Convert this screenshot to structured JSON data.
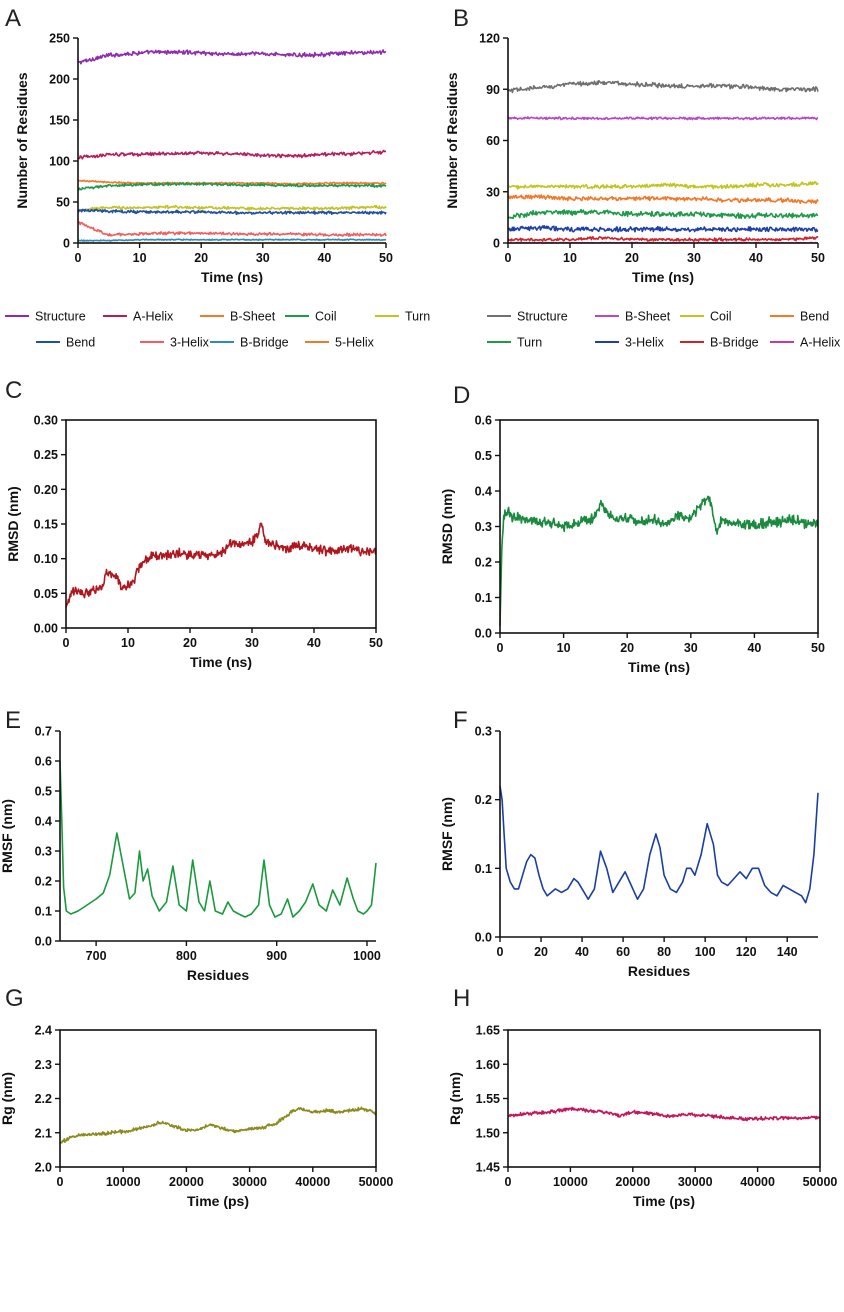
{
  "panel_letters": [
    "A",
    "B",
    "C",
    "D",
    "E",
    "F",
    "G",
    "H"
  ],
  "chart_data": [
    {
      "panel": "A",
      "type": "line",
      "xlabel": "Time (ns)",
      "ylabel": "Number of Residues",
      "xlim": [
        0,
        50
      ],
      "ylim": [
        0,
        250
      ],
      "xticks": [
        0,
        10,
        20,
        30,
        40,
        50
      ],
      "yticks": [
        0,
        50,
        100,
        150,
        200,
        250
      ],
      "yticklabels": [
        "0",
        "50",
        "100",
        "150",
        "200",
        "250"
      ],
      "legend_position": "bottom",
      "series": [
        {
          "name": "Structure",
          "color": "#8e2bb0",
          "base": [
            220,
            229,
            232,
            233,
            232,
            230,
            231,
            229,
            230,
            232,
            233
          ],
          "noise": 3
        },
        {
          "name": "A-Helix",
          "color": "#b51e5c",
          "base": [
            104,
            108,
            108,
            109,
            110,
            109,
            107,
            106,
            108,
            109,
            111
          ],
          "noise": 2.5
        },
        {
          "name": "B-Sheet",
          "color": "#f07a2a",
          "base": [
            76,
            74,
            73,
            73,
            73,
            73,
            73,
            72,
            73,
            73,
            73
          ],
          "noise": 1.2
        },
        {
          "name": "Coil",
          "color": "#1f9a4a",
          "base": [
            66,
            70,
            71,
            72,
            72,
            71,
            71,
            70,
            70,
            70,
            70
          ],
          "noise": 2
        },
        {
          "name": "Turn",
          "color": "#c4c421",
          "base": [
            40,
            43,
            43,
            44,
            43,
            43,
            42,
            42,
            42,
            43,
            44
          ],
          "noise": 2.2
        },
        {
          "name": "Bend",
          "color": "#1f4fa8",
          "base": [
            40,
            39,
            38,
            38,
            38,
            37,
            37,
            37,
            37,
            37,
            37
          ],
          "noise": 2
        },
        {
          "name": "3-Helix",
          "color": "#f25e5e",
          "base": [
            25,
            10,
            11,
            12,
            12,
            11,
            11,
            11,
            10,
            10,
            10
          ],
          "noise": 2
        },
        {
          "name": "B-Bridge",
          "color": "#2a8bbf",
          "base": [
            3,
            3,
            4,
            4,
            4,
            4,
            4,
            4,
            4,
            4,
            4
          ],
          "noise": 0.8
        },
        {
          "name": "5-Helix",
          "color": "#f07a2a",
          "base": [
            0,
            0,
            0,
            0,
            0,
            0,
            0,
            0,
            0,
            0,
            0
          ],
          "noise": 0
        }
      ]
    },
    {
      "panel": "B",
      "type": "line",
      "xlabel": "Time (ns)",
      "ylabel": "Number of Residues",
      "xlim": [
        0,
        50
      ],
      "ylim": [
        0,
        120
      ],
      "xticks": [
        0,
        10,
        20,
        30,
        40,
        50
      ],
      "yticks": [
        0,
        30,
        60,
        90,
        120
      ],
      "yticklabels": [
        "0",
        "30",
        "60",
        "90",
        "120"
      ],
      "legend_position": "bottom",
      "series": [
        {
          "name": "Structure",
          "color": "#707070",
          "base": [
            89,
            91,
            93,
            94,
            93,
            92,
            92,
            92,
            91,
            90,
            90
          ],
          "noise": 1.6
        },
        {
          "name": "B-Sheet",
          "color": "#b548c6",
          "base": [
            73,
            73,
            73,
            73,
            73,
            73,
            73,
            73,
            73,
            73,
            73
          ],
          "noise": 0.8
        },
        {
          "name": "Coil",
          "color": "#c4c421",
          "base": [
            33,
            33,
            33,
            33,
            33,
            34,
            33,
            33,
            34,
            34,
            35
          ],
          "noise": 1.4
        },
        {
          "name": "Bend",
          "color": "#f07a2a",
          "base": [
            27,
            27,
            26,
            26,
            26,
            26,
            26,
            25,
            25,
            25,
            24
          ],
          "noise": 1.5
        },
        {
          "name": "Turn",
          "color": "#1f9a4a",
          "base": [
            15,
            18,
            18,
            18,
            17,
            17,
            17,
            16,
            16,
            16,
            16
          ],
          "noise": 1.8
        },
        {
          "name": "3-Helix",
          "color": "#1f3fa8",
          "base": [
            8,
            9,
            8,
            8,
            8,
            8,
            8,
            8,
            8,
            8,
            8
          ],
          "noise": 1.6
        },
        {
          "name": "B-Bridge",
          "color": "#d0242a",
          "base": [
            2,
            2,
            2,
            3,
            2,
            2,
            2,
            2,
            2,
            2,
            3
          ],
          "noise": 1
        },
        {
          "name": "A-Helix",
          "color": "#c03aa8",
          "base": [
            0,
            0,
            0,
            0,
            0,
            0,
            0,
            0,
            0,
            0,
            0
          ],
          "noise": 0.4
        }
      ]
    },
    {
      "panel": "C",
      "type": "line",
      "xlabel": "Time (ns)",
      "ylabel": "RMSD (nm)",
      "xlim": [
        0,
        50
      ],
      "ylim": [
        0,
        0.3
      ],
      "xticks": [
        0,
        10,
        20,
        30,
        40,
        50
      ],
      "yticks": [
        0,
        0.05,
        0.1,
        0.15,
        0.2,
        0.25,
        0.3
      ],
      "yticklabels": [
        "0.00",
        "0.05",
        "0.10",
        "0.15",
        "0.20",
        "0.25",
        "0.30"
      ],
      "series": [
        {
          "name": "RMSD",
          "color": "#b0161e",
          "x": [
            0,
            1,
            3,
            5,
            6,
            6.5,
            8,
            9,
            10,
            11,
            11.5,
            12.5,
            14,
            16,
            18,
            20,
            22,
            24,
            25.5,
            26.5,
            28,
            30,
            31,
            31.5,
            32,
            34,
            36,
            38,
            40,
            42,
            44,
            46,
            48,
            50
          ],
          "y": [
            0.03,
            0.055,
            0.05,
            0.055,
            0.06,
            0.08,
            0.075,
            0.06,
            0.062,
            0.07,
            0.085,
            0.095,
            0.105,
            0.105,
            0.108,
            0.105,
            0.107,
            0.105,
            0.11,
            0.125,
            0.12,
            0.125,
            0.135,
            0.155,
            0.125,
            0.118,
            0.115,
            0.12,
            0.115,
            0.11,
            0.112,
            0.115,
            0.11,
            0.11
          ],
          "noise": 0.008
        }
      ]
    },
    {
      "panel": "D",
      "type": "line",
      "xlabel": "Time (ns)",
      "ylabel": "RMSD (nm)",
      "xlim": [
        0,
        50
      ],
      "ylim": [
        0,
        0.6
      ],
      "xticks": [
        0,
        10,
        20,
        30,
        40,
        50
      ],
      "yticks": [
        0,
        0.1,
        0.2,
        0.3,
        0.4,
        0.5,
        0.6
      ],
      "yticklabels": [
        "0.0",
        "0.1",
        "0.2",
        "0.3",
        "0.4",
        "0.5",
        "0.6"
      ],
      "series": [
        {
          "name": "RMSD",
          "color": "#1a8a3e",
          "x": [
            0,
            0.3,
            0.6,
            1,
            2,
            4,
            6,
            8,
            10,
            12,
            14,
            15,
            16,
            17,
            18,
            20,
            22,
            24,
            26,
            28,
            30,
            32,
            33,
            34,
            35,
            36,
            38,
            40,
            42,
            44,
            46,
            48,
            50
          ],
          "y": [
            0.02,
            0.25,
            0.33,
            0.34,
            0.33,
            0.32,
            0.31,
            0.31,
            0.3,
            0.31,
            0.32,
            0.33,
            0.37,
            0.34,
            0.32,
            0.32,
            0.31,
            0.32,
            0.31,
            0.33,
            0.32,
            0.37,
            0.38,
            0.29,
            0.32,
            0.31,
            0.31,
            0.3,
            0.31,
            0.31,
            0.32,
            0.31,
            0.31
          ],
          "noise": 0.018
        }
      ]
    },
    {
      "panel": "E",
      "type": "line",
      "xlabel": "Residues",
      "ylabel": "RMSF (nm)",
      "xlim": [
        660,
        1010
      ],
      "ylim": [
        0,
        0.7
      ],
      "xticks": [
        700,
        800,
        900,
        1000
      ],
      "yticks": [
        0,
        0.1,
        0.2,
        0.3,
        0.4,
        0.5,
        0.6,
        0.7
      ],
      "yticklabels": [
        "0.0",
        "0.1",
        "0.2",
        "0.3",
        "0.4",
        "0.5",
        "0.6",
        "0.7"
      ],
      "series": [
        {
          "name": "RMSF",
          "color": "#1a9a3e",
          "x": [
            660,
            662,
            664,
            667,
            672,
            680,
            690,
            700,
            708,
            715,
            723,
            730,
            737,
            743,
            748,
            752,
            757,
            762,
            770,
            778,
            785,
            792,
            800,
            807,
            814,
            820,
            826,
            832,
            840,
            846,
            852,
            858,
            865,
            872,
            880,
            886,
            892,
            898,
            905,
            912,
            918,
            925,
            932,
            940,
            947,
            955,
            962,
            970,
            978,
            985,
            990,
            996,
            1000,
            1005,
            1010
          ],
          "y": [
            0.6,
            0.4,
            0.18,
            0.1,
            0.09,
            0.1,
            0.12,
            0.14,
            0.16,
            0.22,
            0.36,
            0.25,
            0.14,
            0.16,
            0.3,
            0.2,
            0.24,
            0.15,
            0.1,
            0.13,
            0.25,
            0.12,
            0.1,
            0.27,
            0.13,
            0.1,
            0.2,
            0.1,
            0.09,
            0.13,
            0.1,
            0.09,
            0.08,
            0.09,
            0.12,
            0.27,
            0.12,
            0.08,
            0.09,
            0.14,
            0.08,
            0.1,
            0.13,
            0.19,
            0.12,
            0.1,
            0.17,
            0.12,
            0.21,
            0.14,
            0.1,
            0.09,
            0.1,
            0.12,
            0.26
          ],
          "noise": 0
        }
      ]
    },
    {
      "panel": "F",
      "type": "line",
      "xlabel": "Residues",
      "ylabel": "RMSF (nm)",
      "xlim": [
        0,
        155
      ],
      "ylim": [
        0,
        0.3
      ],
      "xticks": [
        0,
        20,
        40,
        60,
        80,
        100,
        120,
        140
      ],
      "yticks": [
        0,
        0.1,
        0.2,
        0.3
      ],
      "yticklabels": [
        "0.0",
        "0.1",
        "0.2",
        "0.3"
      ],
      "series": [
        {
          "name": "RMSF",
          "color": "#1a3fa0",
          "x": [
            0,
            1,
            2,
            3,
            5,
            7,
            9,
            11,
            13,
            15,
            17,
            19,
            21,
            23,
            25,
            27,
            30,
            33,
            36,
            38,
            40,
            43,
            46,
            49,
            52,
            55,
            58,
            61,
            64,
            67,
            70,
            73,
            76,
            78,
            80,
            83,
            86,
            89,
            91,
            93,
            95,
            98,
            101,
            104,
            106,
            108,
            111,
            114,
            117,
            120,
            123,
            126,
            129,
            132,
            135,
            138,
            141,
            144,
            147,
            149,
            151,
            153,
            155
          ],
          "y": [
            0.22,
            0.2,
            0.15,
            0.1,
            0.08,
            0.07,
            0.07,
            0.09,
            0.11,
            0.12,
            0.115,
            0.09,
            0.07,
            0.06,
            0.065,
            0.07,
            0.065,
            0.07,
            0.085,
            0.08,
            0.07,
            0.055,
            0.07,
            0.125,
            0.1,
            0.065,
            0.08,
            0.095,
            0.075,
            0.055,
            0.07,
            0.12,
            0.15,
            0.13,
            0.09,
            0.07,
            0.065,
            0.08,
            0.1,
            0.1,
            0.09,
            0.12,
            0.165,
            0.135,
            0.09,
            0.08,
            0.075,
            0.085,
            0.095,
            0.085,
            0.1,
            0.1,
            0.075,
            0.065,
            0.06,
            0.075,
            0.07,
            0.065,
            0.06,
            0.05,
            0.07,
            0.12,
            0.21
          ],
          "noise": 0
        }
      ]
    },
    {
      "panel": "G",
      "type": "line",
      "xlabel": "Time (ps)",
      "ylabel": "Rg (nm)",
      "xlim": [
        0,
        50000
      ],
      "ylim": [
        2.0,
        2.4
      ],
      "xticks": [
        0,
        10000,
        20000,
        30000,
        40000,
        50000
      ],
      "yticks": [
        2.0,
        2.1,
        2.2,
        2.3,
        2.4
      ],
      "yticklabels": [
        "2.0",
        "2.1",
        "2.2",
        "2.3",
        "2.4"
      ],
      "series": [
        {
          "name": "Rg",
          "color": "#8a8a1e",
          "x": [
            0,
            2000,
            5000,
            8000,
            11000,
            14000,
            16000,
            18000,
            20000,
            22000,
            24000,
            26000,
            28000,
            30000,
            32000,
            34000,
            35500,
            37000,
            38000,
            40000,
            42000,
            44000,
            46000,
            48000,
            49000,
            50000
          ],
          "y": [
            2.07,
            2.09,
            2.095,
            2.1,
            2.105,
            2.12,
            2.13,
            2.12,
            2.105,
            2.11,
            2.125,
            2.11,
            2.105,
            2.11,
            2.115,
            2.125,
            2.145,
            2.165,
            2.17,
            2.16,
            2.165,
            2.16,
            2.165,
            2.17,
            2.165,
            2.155
          ],
          "noise": 0.006
        }
      ]
    },
    {
      "panel": "H",
      "type": "line",
      "xlabel": "Time (ps)",
      "ylabel": "Rg (nm)",
      "xlim": [
        0,
        50000
      ],
      "ylim": [
        1.45,
        1.65
      ],
      "xticks": [
        0,
        10000,
        20000,
        30000,
        40000,
        50000
      ],
      "yticks": [
        1.45,
        1.5,
        1.55,
        1.6,
        1.65
      ],
      "yticklabels": [
        "1.45",
        "1.50",
        "1.55",
        "1.60",
        "1.65"
      ],
      "series": [
        {
          "name": "Rg",
          "color": "#c2185b",
          "x": [
            0,
            3000,
            6000,
            9000,
            10000,
            13000,
            16000,
            18000,
            20000,
            23000,
            26000,
            29000,
            32000,
            35000,
            38000,
            41000,
            44000,
            47000,
            50000
          ],
          "y": [
            1.524,
            1.528,
            1.53,
            1.533,
            1.535,
            1.532,
            1.53,
            1.525,
            1.53,
            1.528,
            1.524,
            1.527,
            1.525,
            1.522,
            1.52,
            1.521,
            1.522,
            1.521,
            1.523
          ],
          "noise": 0.003
        }
      ]
    }
  ]
}
